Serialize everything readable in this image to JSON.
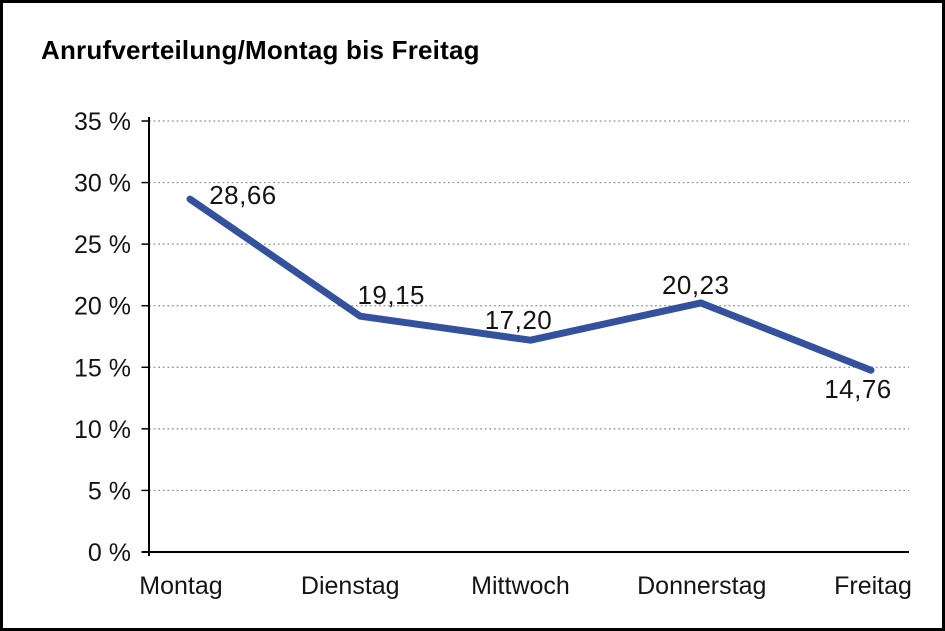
{
  "chart_data": {
    "type": "line",
    "title": "Anrufverteilung/Montag bis Freitag",
    "categories": [
      "Montag",
      "Dienstag",
      "Mittwoch",
      "Donnerstag",
      "Freitag"
    ],
    "series": [
      {
        "name": "Anrufverteilung",
        "values": [
          28.66,
          19.15,
          17.2,
          20.23,
          14.76
        ]
      }
    ],
    "point_labels": [
      "28,66",
      "19,15",
      "17,20",
      "20,23",
      "14,76"
    ],
    "y_tick_labels": [
      "35 %",
      "30 %",
      "25 %",
      "20 %",
      "15 %",
      "10 %",
      "5 %",
      "0 %"
    ],
    "y_tick_values": [
      35,
      30,
      25,
      20,
      15,
      10,
      5,
      0
    ],
    "ylim": [
      0,
      35
    ],
    "xlabel": "",
    "ylabel": "",
    "legend": "none",
    "grid": "horizontal-dotted",
    "colors": {
      "line": "#33519d",
      "grid": "#8f8f8f",
      "axis": "#000000",
      "text": "#141414",
      "background": "#ffffff",
      "border": "#000000"
    }
  }
}
